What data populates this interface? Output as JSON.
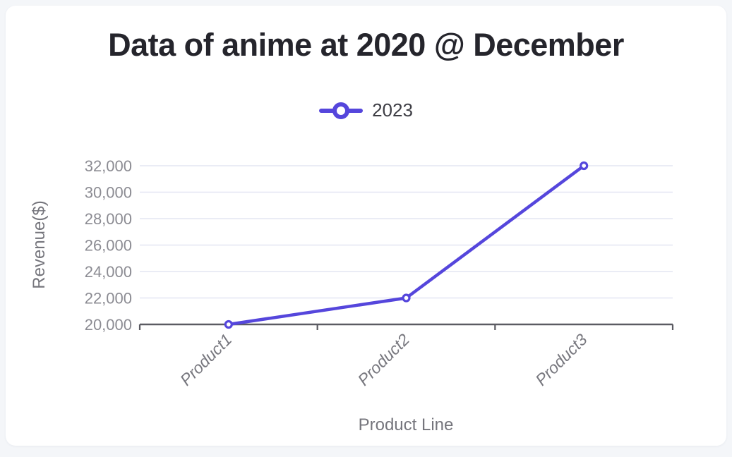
{
  "chart": {
    "title": "Data of anime at 2020 @ December",
    "legend": [
      {
        "label": "2023",
        "color": "#5546dc"
      }
    ]
  },
  "chart_data": {
    "type": "line",
    "categories": [
      "Product1",
      "Product2",
      "Product3"
    ],
    "series": [
      {
        "name": "2023",
        "values": [
          20000,
          22000,
          32000
        ]
      }
    ],
    "title": "Data of anime at 2020 @ December",
    "xlabel": "Product Line",
    "ylabel": "Revenue($)",
    "ylim": [
      20000,
      32000
    ],
    "ytick_step": 2000,
    "ytick_labels": [
      "20,000",
      "22,000",
      "24,000",
      "26,000",
      "28,000",
      "30,000",
      "32,000"
    ],
    "grid": true,
    "legend_position": "top",
    "colors": {
      "line": "#5546dc",
      "marker_fill": "#ffffff",
      "grid": "#e3e6f2",
      "axis": "#5b5b62",
      "tick_text": "#8b8b92",
      "axis_title_text": "#75757c",
      "title_text": "#25252c",
      "card_background": "#ffffff",
      "page_background": "#f4f6f9"
    }
  }
}
